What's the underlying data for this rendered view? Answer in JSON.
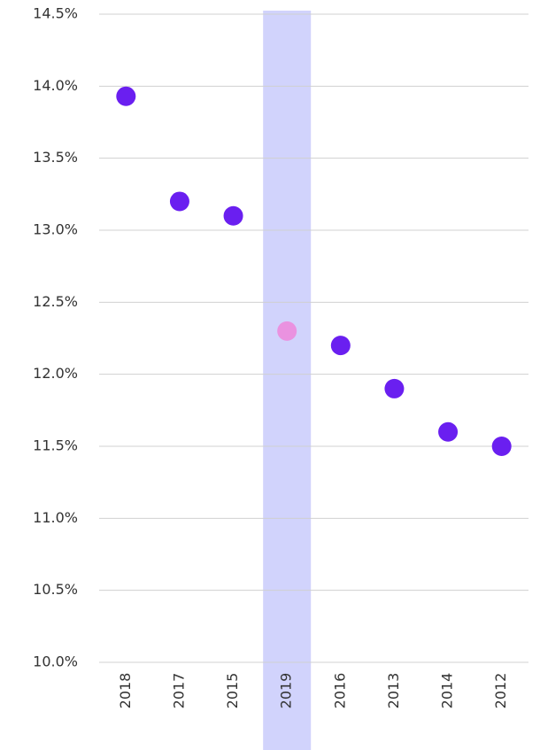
{
  "chart_data": {
    "type": "scatter",
    "categories": [
      "2018",
      "2017",
      "2015",
      "2019",
      "2016",
      "2013",
      "2014",
      "2012"
    ],
    "values": [
      13.93,
      13.2,
      13.1,
      12.3,
      12.2,
      11.9,
      11.6,
      11.5
    ],
    "colors": [
      "#6a1ff0",
      "#6a1ff0",
      "#6a1ff0",
      "#ea92e0",
      "#6a1ff0",
      "#6a1ff0",
      "#6a1ff0",
      "#6a1ff0"
    ],
    "highlight_categories": [
      "2019"
    ],
    "highlight_color": "#d1d3fc",
    "ylim": [
      10.0,
      14.5
    ],
    "yticks": [
      {
        "value": 10.0,
        "label": "10.0%"
      },
      {
        "value": 10.5,
        "label": "10.5%"
      },
      {
        "value": 11.0,
        "label": "11.0%"
      },
      {
        "value": 11.5,
        "label": "11.5%"
      },
      {
        "value": 12.0,
        "label": "12.0%"
      },
      {
        "value": 12.5,
        "label": "12.5%"
      },
      {
        "value": 13.0,
        "label": "13.0%"
      },
      {
        "value": 13.5,
        "label": "13.5%"
      },
      {
        "value": 14.0,
        "label": "14.0%"
      },
      {
        "value": 14.5,
        "label": "14.5%"
      }
    ],
    "grid": true
  }
}
